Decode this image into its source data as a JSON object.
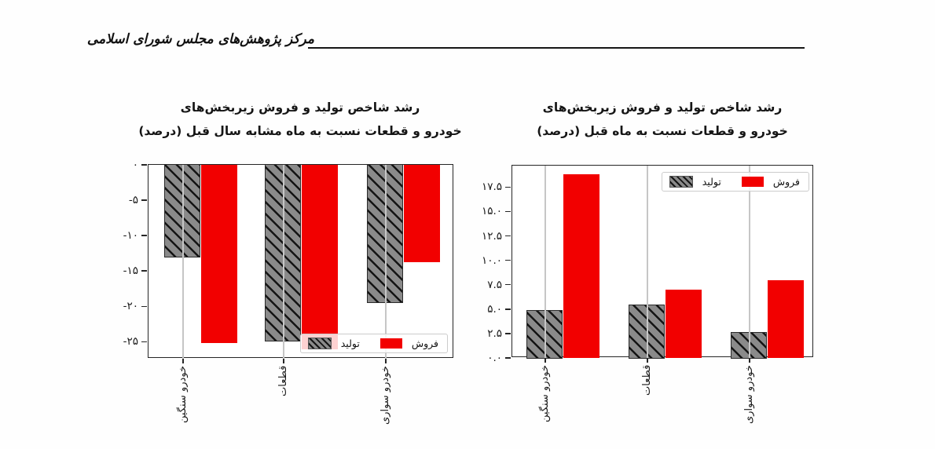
{
  "header": {
    "org_name": "مرکز پژوهش‌های مجلس شورای اسلامی"
  },
  "colors": {
    "sales_red": "#f20000",
    "production_gray": "#8a8a8a",
    "hatch_black": "#141414",
    "grid_gray": "#c6c6c6",
    "frame_black": "#262626"
  },
  "chart_data": [
    {
      "id": "growth-vs-same-month-last-year",
      "type": "bar",
      "title_lines": [
        "رشد شاخص تولید و فروش زیربخش‌های",
        "خودرو و قطعات نسبت به ماه مشابه سال قبل (درصد)"
      ],
      "categories": [
        "خودرو سنگین",
        "قطعات",
        "خودرو سواری"
      ],
      "series": [
        {
          "name": "تولید",
          "values": [
            -13.0,
            -24.9,
            -19.4
          ]
        },
        {
          "name": "فروش",
          "values": [
            -25.2,
            -26.1,
            -13.7
          ]
        }
      ],
      "ylim": [
        -27.4,
        0
      ],
      "yticks": {
        "values": [
          0,
          -5,
          -10,
          -15,
          -20,
          -25
        ],
        "labels": [
          "۰",
          "-۵",
          "-۱۰",
          "-۱۵",
          "-۲۰",
          "-۲۵"
        ]
      },
      "grid": "vertical",
      "legend_position": "lower right"
    },
    {
      "id": "growth-vs-previous-month",
      "type": "bar",
      "title_lines": [
        "رشد شاخص تولید و فروش زیربخش‌های",
        "خودرو و قطعات نسبت به ماه قبل (درصد)"
      ],
      "categories": [
        "خودرو سنگین",
        "قطعات",
        "خودرو سواری"
      ],
      "series": [
        {
          "name": "تولید",
          "values": [
            4.8,
            5.4,
            2.6
          ]
        },
        {
          "name": "فروش",
          "values": [
            18.8,
            7.0,
            8.0
          ]
        }
      ],
      "ylim": [
        0,
        19.7
      ],
      "yticks": {
        "values": [
          0,
          2.5,
          5,
          7.5,
          10,
          12.5,
          15,
          17.5
        ],
        "labels": [
          "۰.۰",
          "۲.۵",
          "۵.۰",
          "۷.۵",
          "۱۰.۰",
          "۱۲.۵",
          "۱۵.۰",
          "۱۷.۵"
        ]
      },
      "grid": "vertical",
      "legend_position": "upper right"
    }
  ]
}
